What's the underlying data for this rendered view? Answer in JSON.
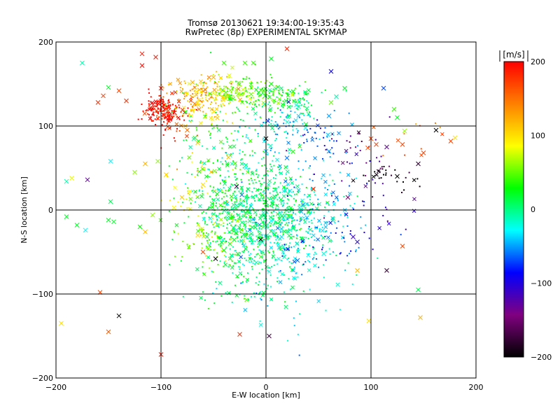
{
  "chart_data": {
    "type": "scatter",
    "title": "Tromsø 20130621 19:34:00-19:35:43",
    "subtitle": "RwPretec (8p) EXPERIMENTAL SKYMAP",
    "xlabel": "E-W location [km]",
    "ylabel": "N-S location [km]",
    "xlim": [
      -200,
      200
    ],
    "ylim": [
      -200,
      200
    ],
    "xticks": [
      -200,
      -100,
      0,
      100,
      200
    ],
    "yticks": [
      -200,
      -100,
      0,
      100,
      200
    ],
    "xtick_labels": [
      "−200",
      "−100",
      "0",
      "100",
      "200"
    ],
    "ytick_labels": [
      "−200",
      "−100",
      "0",
      "100",
      "200"
    ],
    "grid": true,
    "colorbar": {
      "label": "[m/s]",
      "range": [
        -200,
        200
      ],
      "ticks": [
        200,
        100,
        0,
        -100,
        -200
      ],
      "tick_labels": [
        "200",
        "100",
        "0",
        "−100",
        "−200"
      ],
      "colors": [
        "#000000",
        "#800080",
        "#0000ff",
        "#00ffff",
        "#00ff00",
        "#ffff00",
        "#ff8000",
        "#ff0000"
      ]
    },
    "clusters": [
      {
        "cx": -100,
        "cy": 118,
        "rx": 9,
        "ry": 8,
        "v": 195,
        "n": 140
      },
      {
        "cx": -88,
        "cy": 110,
        "rx": 14,
        "ry": 12,
        "v": 185,
        "n": 60
      },
      {
        "cx": -60,
        "cy": 140,
        "rx": 14,
        "ry": 10,
        "v": 125,
        "n": 110
      },
      {
        "cx": -58,
        "cy": 118,
        "rx": 14,
        "ry": 10,
        "v": 100,
        "n": 70
      },
      {
        "cx": -30,
        "cy": 140,
        "rx": 15,
        "ry": 9,
        "v": 60,
        "n": 100
      },
      {
        "cx": 0,
        "cy": 138,
        "rx": 15,
        "ry": 9,
        "v": 40,
        "n": 100
      },
      {
        "cx": 25,
        "cy": 128,
        "rx": 14,
        "ry": 10,
        "v": 10,
        "n": 90
      },
      {
        "cx": 20,
        "cy": 100,
        "rx": 18,
        "ry": 12,
        "v": -40,
        "n": 60
      },
      {
        "cx": 50,
        "cy": 85,
        "rx": 20,
        "ry": 16,
        "v": -70,
        "n": 40
      },
      {
        "cx": -40,
        "cy": 80,
        "rx": 22,
        "ry": 30,
        "v": 20,
        "n": 80
      },
      {
        "cx": -15,
        "cy": 40,
        "rx": 25,
        "ry": 30,
        "v": 0,
        "n": 120
      },
      {
        "cx": -5,
        "cy": 5,
        "rx": 28,
        "ry": 25,
        "v": 5,
        "n": 380
      },
      {
        "cx": 15,
        "cy": -25,
        "rx": 30,
        "ry": 25,
        "v": -20,
        "n": 260
      },
      {
        "cx": -20,
        "cy": -30,
        "rx": 28,
        "ry": 25,
        "v": 20,
        "n": 180
      },
      {
        "cx": -45,
        "cy": 10,
        "rx": 18,
        "ry": 30,
        "v": 30,
        "n": 90
      },
      {
        "cx": -60,
        "cy": -35,
        "rx": 15,
        "ry": 15,
        "v": 60,
        "n": 50
      },
      {
        "cx": -65,
        "cy": 25,
        "rx": 14,
        "ry": 25,
        "v": 90,
        "n": 40
      },
      {
        "cx": 10,
        "cy": -70,
        "rx": 25,
        "ry": 20,
        "v": -10,
        "n": 80
      },
      {
        "cx": -30,
        "cy": -90,
        "rx": 22,
        "ry": 18,
        "v": 15,
        "n": 40
      },
      {
        "cx": 50,
        "cy": 10,
        "rx": 20,
        "ry": 25,
        "v": -40,
        "n": 80
      },
      {
        "cx": 60,
        "cy": -40,
        "rx": 22,
        "ry": 20,
        "v": -70,
        "n": 40
      },
      {
        "cx": 100,
        "cy": 0,
        "rx": 25,
        "ry": 25,
        "v": -110,
        "n": 25
      },
      {
        "cx": 80,
        "cy": 60,
        "rx": 18,
        "ry": 15,
        "v": -130,
        "n": 20
      },
      {
        "cx": 120,
        "cy": 40,
        "rx": 15,
        "ry": 10,
        "v": -200,
        "n": 30
      },
      {
        "cx": 140,
        "cy": 80,
        "rx": 25,
        "ry": 15,
        "v": 150,
        "n": 12
      },
      {
        "cx": 80,
        "cy": 80,
        "rx": 15,
        "ry": 12,
        "v": -140,
        "n": 12
      },
      {
        "cx": 20,
        "cy": -100,
        "rx": 25,
        "ry": 30,
        "v": -30,
        "n": 30
      },
      {
        "cx": 0,
        "cy": 80,
        "rx": 20,
        "ry": 20,
        "v": -30,
        "n": 30
      }
    ],
    "markers": [
      {
        "x": -118,
        "y": 186,
        "v": 190
      },
      {
        "x": -105,
        "y": 182,
        "v": 190
      },
      {
        "x": -118,
        "y": 172,
        "v": 195
      },
      {
        "x": 20,
        "y": 192,
        "v": 185
      },
      {
        "x": -160,
        "y": 128,
        "v": 180
      },
      {
        "x": -155,
        "y": 136,
        "v": 175
      },
      {
        "x": -140,
        "y": 142,
        "v": 170
      },
      {
        "x": -133,
        "y": 130,
        "v": 180
      },
      {
        "x": -150,
        "y": 146,
        "v": 20
      },
      {
        "x": -175,
        "y": 175,
        "v": -10
      },
      {
        "x": -185,
        "y": 38,
        "v": 80
      },
      {
        "x": -190,
        "y": 34,
        "v": -10
      },
      {
        "x": -170,
        "y": 36,
        "v": -130
      },
      {
        "x": -148,
        "y": 58,
        "v": -30
      },
      {
        "x": -148,
        "y": 10,
        "v": 10
      },
      {
        "x": -150,
        "y": -12,
        "v": 20
      },
      {
        "x": -145,
        "y": -14,
        "v": 20
      },
      {
        "x": -190,
        "y": -8,
        "v": 20
      },
      {
        "x": -180,
        "y": -18,
        "v": 20
      },
      {
        "x": -172,
        "y": -24,
        "v": -30
      },
      {
        "x": -158,
        "y": -98,
        "v": 170
      },
      {
        "x": -150,
        "y": -145,
        "v": 160
      },
      {
        "x": -140,
        "y": -126,
        "v": -200
      },
      {
        "x": -100,
        "y": -172,
        "v": 190
      },
      {
        "x": -195,
        "y": -135,
        "v": 100
      },
      {
        "x": -25,
        "y": -148,
        "v": 180
      },
      {
        "x": 3,
        "y": -150,
        "v": -170
      },
      {
        "x": 98,
        "y": -132,
        "v": 100
      },
      {
        "x": 147,
        "y": -128,
        "v": 120
      },
      {
        "x": 145,
        "y": -95,
        "v": 10
      },
      {
        "x": 115,
        "y": -72,
        "v": -180
      },
      {
        "x": 87,
        "y": -72,
        "v": 120
      },
      {
        "x": 130,
        "y": -43,
        "v": 170
      },
      {
        "x": 87,
        "y": -38,
        "v": -100
      },
      {
        "x": 112,
        "y": 145,
        "v": -70
      },
      {
        "x": 122,
        "y": 120,
        "v": 40
      },
      {
        "x": 125,
        "y": 110,
        "v": 20
      },
      {
        "x": 132,
        "y": 94,
        "v": 60
      },
      {
        "x": 162,
        "y": 95,
        "v": -200
      },
      {
        "x": 176,
        "y": 82,
        "v": 170
      },
      {
        "x": 180,
        "y": 86,
        "v": 100
      },
      {
        "x": 150,
        "y": 68,
        "v": 170
      },
      {
        "x": 145,
        "y": 55,
        "v": -180
      },
      {
        "x": 130,
        "y": 78,
        "v": 170
      },
      {
        "x": 115,
        "y": 75,
        "v": -130
      },
      {
        "x": 105,
        "y": 78,
        "v": 170
      },
      {
        "x": 97,
        "y": 74,
        "v": 170
      },
      {
        "x": 125,
        "y": 40,
        "v": -200
      },
      {
        "x": 100,
        "y": 85,
        "v": 170
      },
      {
        "x": 62,
        "y": 128,
        "v": 50
      },
      {
        "x": 60,
        "y": 112,
        "v": -50
      },
      {
        "x": 67,
        "y": 135,
        "v": -10
      },
      {
        "x": 75,
        "y": 145,
        "v": 20
      },
      {
        "x": 62,
        "y": 165,
        "v": -90
      },
      {
        "x": 38,
        "y": 102,
        "v": 20
      },
      {
        "x": -75,
        "y": 95,
        "v": 150
      },
      {
        "x": -65,
        "y": 80,
        "v": 110
      },
      {
        "x": -100,
        "y": 145,
        "v": 190
      },
      {
        "x": -100,
        "y": 130,
        "v": 190
      },
      {
        "x": 45,
        "y": 25,
        "v": 190
      },
      {
        "x": 78,
        "y": 15,
        "v": -150
      },
      {
        "x": 83,
        "y": -32,
        "v": -110
      },
      {
        "x": 55,
        "y": -52,
        "v": -20
      },
      {
        "x": 30,
        "y": -60,
        "v": -60
      },
      {
        "x": -60,
        "y": -50,
        "v": 170
      },
      {
        "x": -48,
        "y": -58,
        "v": -200
      },
      {
        "x": -40,
        "y": -48,
        "v": 30
      },
      {
        "x": -65,
        "y": -30,
        "v": 100
      },
      {
        "x": -115,
        "y": -26,
        "v": 120
      },
      {
        "x": -108,
        "y": -6,
        "v": 60
      },
      {
        "x": -120,
        "y": -20,
        "v": 30
      },
      {
        "x": -125,
        "y": 45,
        "v": 60
      },
      {
        "x": -115,
        "y": 55,
        "v": 120
      },
      {
        "x": -103,
        "y": 58,
        "v": 60
      },
      {
        "x": -95,
        "y": 42,
        "v": 110
      },
      {
        "x": -60,
        "y": 30,
        "v": 100
      },
      {
        "x": -80,
        "y": 15,
        "v": 110
      },
      {
        "x": -23,
        "y": 18,
        "v": -60
      },
      {
        "x": -28,
        "y": 28,
        "v": -160
      },
      {
        "x": 0,
        "y": 70,
        "v": -40
      },
      {
        "x": 0,
        "y": 85,
        "v": -200
      },
      {
        "x": 20,
        "y": 62,
        "v": -60
      },
      {
        "x": 60,
        "y": 70,
        "v": -50
      },
      {
        "x": -5,
        "y": -35,
        "v": -200
      },
      {
        "x": 5,
        "y": 180,
        "v": 20
      },
      {
        "x": -20,
        "y": 175,
        "v": 40
      },
      {
        "x": -35,
        "y": 160,
        "v": 80
      },
      {
        "x": -50,
        "y": 158,
        "v": 120
      },
      {
        "x": -70,
        "y": 152,
        "v": 120
      },
      {
        "x": -12,
        "y": 175,
        "v": 40
      },
      {
        "x": -40,
        "y": 175,
        "v": 40
      },
      {
        "x": 22,
        "y": 112,
        "v": 0
      },
      {
        "x": 5,
        "y": 150,
        "v": 30
      }
    ],
    "seed": 20130621
  }
}
